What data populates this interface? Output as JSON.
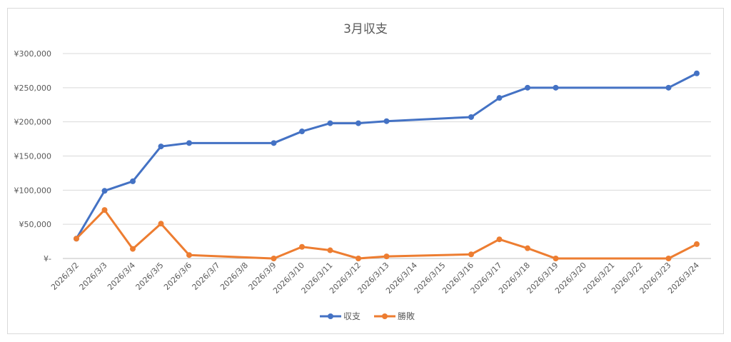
{
  "chart_data": {
    "type": "line",
    "title": "3月収支",
    "categories": [
      "2026/3/2",
      "2026/3/3",
      "2026/3/4",
      "2026/3/5",
      "2026/3/6",
      "2026/3/7",
      "2026/3/8",
      "2026/3/9",
      "2026/3/10",
      "2026/3/11",
      "2026/3/12",
      "2026/3/13",
      "2026/3/14",
      "2026/3/15",
      "2026/3/16",
      "2026/3/17",
      "2026/3/18",
      "2026/3/19",
      "2026/3/20",
      "2026/3/21",
      "2026/3/22",
      "2026/3/23",
      "2026/3/24"
    ],
    "ytick_labels": [
      "¥-",
      "¥50,000",
      "¥100,000",
      "¥150,000",
      "¥200,000",
      "¥250,000",
      "¥300,000"
    ],
    "ylim": [
      0,
      300000
    ],
    "grid": true,
    "legend_position": "bottom",
    "series": [
      {
        "name": "収支",
        "color": "#4472c4",
        "points": [
          {
            "x": "2026/3/2",
            "y": 29000
          },
          {
            "x": "2026/3/3",
            "y": 99000
          },
          {
            "x": "2026/3/4",
            "y": 113000
          },
          {
            "x": "2026/3/5",
            "y": 164000
          },
          {
            "x": "2026/3/6",
            "y": 169000
          },
          {
            "x": "2026/3/9",
            "y": 169000
          },
          {
            "x": "2026/3/10",
            "y": 186000
          },
          {
            "x": "2026/3/11",
            "y": 198000
          },
          {
            "x": "2026/3/12",
            "y": 198000
          },
          {
            "x": "2026/3/13",
            "y": 201000
          },
          {
            "x": "2026/3/16",
            "y": 207000
          },
          {
            "x": "2026/3/17",
            "y": 235000
          },
          {
            "x": "2026/3/18",
            "y": 250000
          },
          {
            "x": "2026/3/19",
            "y": 250000
          },
          {
            "x": "2026/3/23",
            "y": 250000
          },
          {
            "x": "2026/3/24",
            "y": 271000
          }
        ]
      },
      {
        "name": "勝敗",
        "color": "#ed7d31",
        "points": [
          {
            "x": "2026/3/2",
            "y": 29000
          },
          {
            "x": "2026/3/3",
            "y": 71000
          },
          {
            "x": "2026/3/4",
            "y": 14000
          },
          {
            "x": "2026/3/5",
            "y": 51000
          },
          {
            "x": "2026/3/6",
            "y": 5000
          },
          {
            "x": "2026/3/9",
            "y": 0
          },
          {
            "x": "2026/3/10",
            "y": 17000
          },
          {
            "x": "2026/3/11",
            "y": 12000
          },
          {
            "x": "2026/3/12",
            "y": 0
          },
          {
            "x": "2026/3/13",
            "y": 3000
          },
          {
            "x": "2026/3/16",
            "y": 6000
          },
          {
            "x": "2026/3/17",
            "y": 28000
          },
          {
            "x": "2026/3/18",
            "y": 15000
          },
          {
            "x": "2026/3/19",
            "y": 0
          },
          {
            "x": "2026/3/23",
            "y": 0
          },
          {
            "x": "2026/3/24",
            "y": 21000
          }
        ]
      }
    ]
  }
}
